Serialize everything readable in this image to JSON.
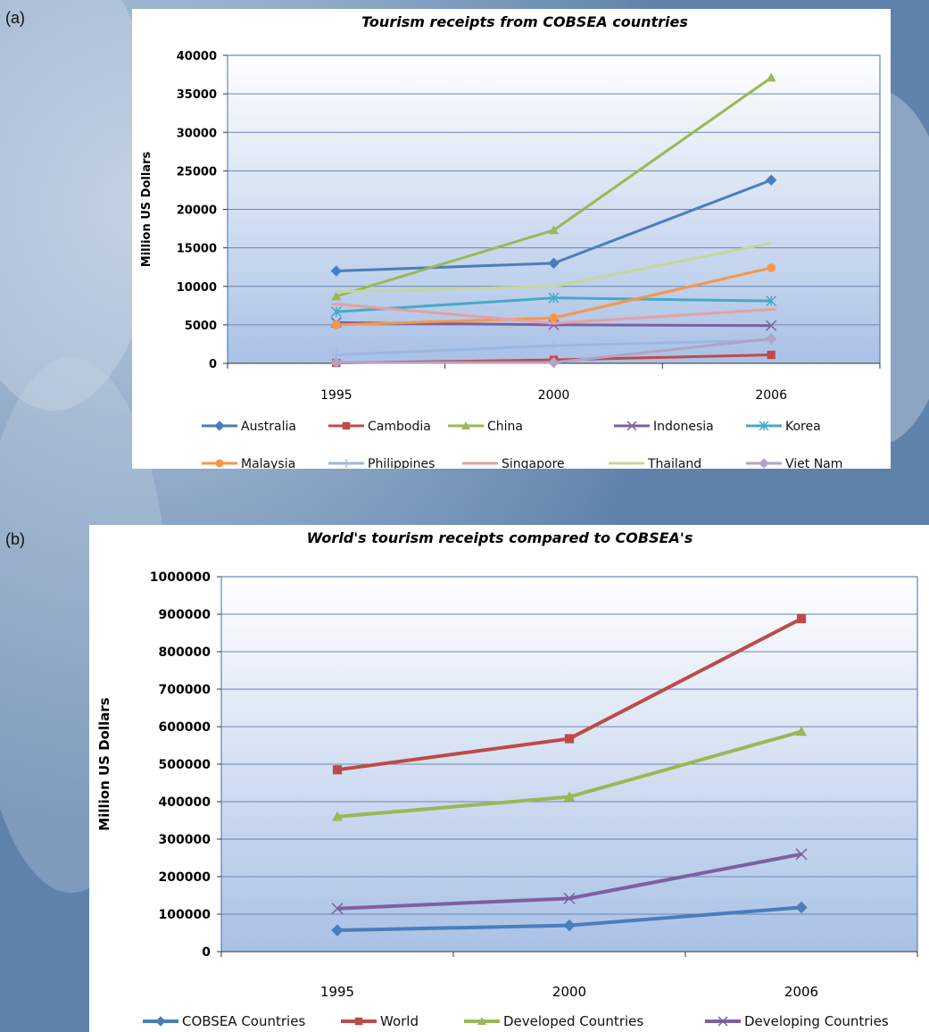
{
  "panels": {
    "a_label": "(a)",
    "b_label": "(b)"
  },
  "colors": {
    "background": "#6f8fb3",
    "plot_top": "#ffffff",
    "plot_bottom": "#a9c1e6"
  },
  "chart_data": [
    {
      "type": "line",
      "title": "Tourism receipts from COBSEA countries",
      "xlabel": "",
      "ylabel": "Million US Dollars",
      "categories": [
        "1995",
        "2000",
        "2006"
      ],
      "ylim": [
        0,
        40000
      ],
      "yticks": [
        0,
        5000,
        10000,
        15000,
        20000,
        25000,
        30000,
        35000,
        40000
      ],
      "grid": true,
      "legend_position": "bottom",
      "series": [
        {
          "name": "Australia",
          "values": [
            12000,
            13000,
            23800
          ],
          "color": "#4a7ebb",
          "marker": "diamond"
        },
        {
          "name": "Cambodia",
          "values": [
            50,
            450,
            1100
          ],
          "color": "#be4b48",
          "marker": "square"
        },
        {
          "name": "China",
          "values": [
            8700,
            17300,
            37100
          ],
          "color": "#98b954",
          "marker": "triangle"
        },
        {
          "name": "Indonesia",
          "values": [
            5300,
            5000,
            4900
          ],
          "color": "#7d60a0",
          "marker": "x"
        },
        {
          "name": "Korea",
          "values": [
            6700,
            8500,
            8100
          ],
          "color": "#46aac5",
          "marker": "star"
        },
        {
          "name": "Malaysia",
          "values": [
            5000,
            5900,
            12400
          ],
          "color": "#f79646",
          "marker": "circle"
        },
        {
          "name": "Philippines",
          "values": [
            1100,
            2300,
            3000
          ],
          "color": "#9bb7e0",
          "marker": "plus"
        },
        {
          "name": "Singapore",
          "values": [
            7700,
            5200,
            7000
          ],
          "color": "#e6a0a0",
          "marker": "dash"
        },
        {
          "name": "Thailand",
          "values": [
            9300,
            10000,
            15600
          ],
          "color": "#c3d79b",
          "marker": "none"
        },
        {
          "name": "Viet Nam",
          "values": [
            100,
            100,
            3200
          ],
          "color": "#b3a2c7",
          "marker": "diamond"
        }
      ]
    },
    {
      "type": "line",
      "title": "World's tourism receipts compared to COBSEA's",
      "xlabel": "",
      "ylabel": "Million US Dollars",
      "categories": [
        "1995",
        "2000",
        "2006"
      ],
      "ylim": [
        0,
        1000000
      ],
      "yticks": [
        0,
        100000,
        200000,
        300000,
        400000,
        500000,
        600000,
        700000,
        800000,
        900000,
        1000000
      ],
      "grid": true,
      "legend_position": "bottom",
      "series": [
        {
          "name": "COBSEA Countries",
          "values": [
            57000,
            70000,
            118000
          ],
          "color": "#4a7ebb",
          "marker": "diamond"
        },
        {
          "name": "World",
          "values": [
            485000,
            568000,
            888000
          ],
          "color": "#be4b48",
          "marker": "square"
        },
        {
          "name": "Developed Countries",
          "values": [
            360000,
            413000,
            587000
          ],
          "color": "#98b954",
          "marker": "triangle"
        },
        {
          "name": "Developing Countries",
          "values": [
            115000,
            142000,
            260000
          ],
          "color": "#7d60a0",
          "marker": "x"
        }
      ]
    }
  ]
}
